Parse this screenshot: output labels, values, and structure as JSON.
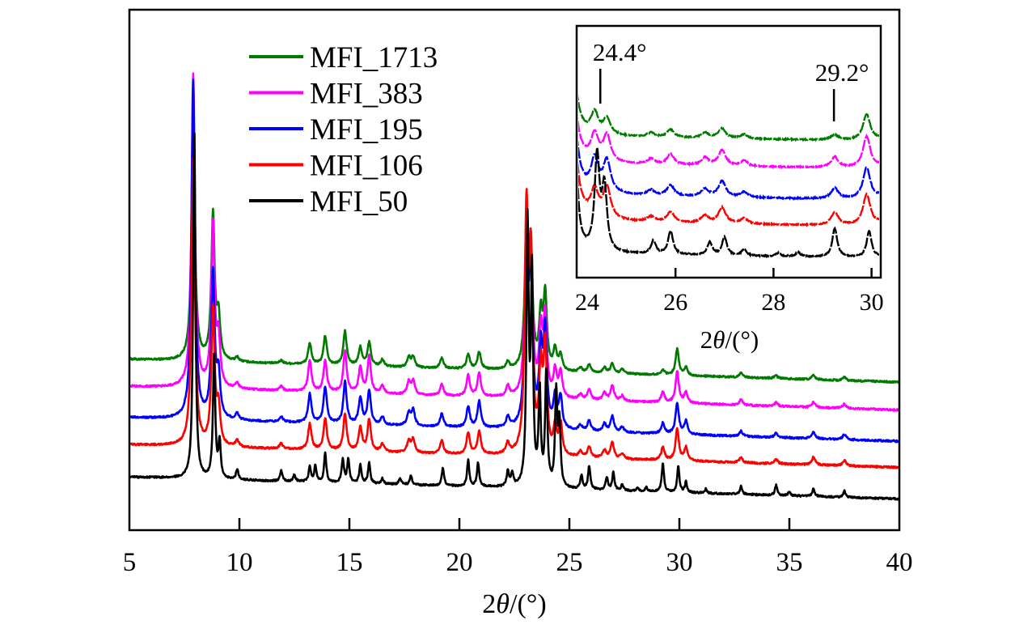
{
  "chart_data": {
    "type": "line",
    "title": "",
    "xlabel": "2θ/(°)",
    "xlabel_parts": {
      "prefix": "2",
      "symbol": "θ",
      "suffix": "/(°)"
    },
    "ylabel": "",
    "xlim": [
      5,
      40
    ],
    "ylim": [
      0,
      100
    ],
    "y_units": "arbitrary intensity (no y-axis shown)",
    "xticks": [
      5,
      10,
      15,
      20,
      25,
      30,
      35,
      40
    ],
    "grid": false,
    "legend_placement": "top-left",
    "peak_half_width_deg": {
      "default": 0.09,
      "MFI_50": 0.06
    },
    "peak_positions": [
      7.9,
      8.8,
      9.05,
      9.9,
      11.9,
      13.2,
      13.9,
      14.8,
      15.5,
      15.9,
      16.5,
      17.7,
      17.9,
      19.2,
      20.4,
      20.9,
      22.2,
      23.05,
      23.25,
      23.7,
      23.9,
      24.35,
      24.6,
      25.5,
      25.9,
      26.6,
      26.95,
      27.4,
      29.25,
      29.9,
      30.3,
      32.8,
      34.4,
      36.1,
      37.5
    ],
    "series": [
      {
        "name": "MFI_1713",
        "color": "#007a00",
        "offset": 32.7,
        "slope": -0.125,
        "heights": [
          48,
          28,
          8,
          0.8,
          0.6,
          4,
          5.5,
          6.5,
          3.5,
          4.5,
          1.3,
          2,
          2,
          2,
          2.8,
          3.3,
          1.5,
          27,
          22,
          10,
          14,
          4,
          3,
          0.8,
          1.5,
          1,
          1.8,
          0.8,
          1,
          5,
          1.5,
          0.8,
          0.5,
          0.8,
          0.6
        ]
      },
      {
        "name": "MFI_383",
        "color": "#ff00ff",
        "offset": 27.5,
        "slope": -0.13,
        "heights": [
          60,
          31,
          9,
          1,
          0.8,
          6,
          6,
          8,
          5,
          7,
          1.5,
          2.5,
          2.5,
          2.2,
          4,
          4.5,
          2,
          30,
          26,
          12,
          15,
          5,
          5,
          1,
          2,
          1.5,
          3,
          1,
          2,
          6,
          2,
          1,
          0.7,
          1,
          0.8
        ]
      },
      {
        "name": "MFI_195",
        "color": "#0000ff",
        "offset": 21.5,
        "slope": -0.13,
        "heights": [
          65,
          28,
          8,
          1.2,
          1,
          5.5,
          7,
          8,
          5,
          6.5,
          1.5,
          2.5,
          3,
          2.5,
          4,
          5,
          2,
          35,
          28,
          14,
          18,
          6,
          6,
          1,
          2,
          1.5,
          3,
          1,
          2,
          6,
          2.5,
          1,
          0.8,
          1.2,
          1
        ]
      },
      {
        "name": "MFI_106",
        "color": "#ff0000",
        "offset": 16.3,
        "slope": -0.125,
        "heights": [
          55,
          26,
          7,
          1.2,
          1,
          5,
          6,
          7,
          4.5,
          6,
          1.5,
          2.2,
          2.5,
          2.5,
          4,
          4.5,
          2,
          45,
          35,
          15,
          20,
          5,
          6,
          1,
          2,
          1.5,
          3,
          1,
          2.5,
          6,
          2.5,
          1,
          0.8,
          1.5,
          1
        ]
      },
      {
        "name": "MFI_50",
        "color": "#000000",
        "offset": 10.1,
        "slope": -0.12,
        "peaks": [
          [
            7.95,
            68
          ],
          [
            8.85,
            24
          ],
          [
            9.1,
            7
          ],
          [
            9.9,
            2
          ],
          [
            11.9,
            2
          ],
          [
            12.5,
            1.3
          ],
          [
            13.2,
            3
          ],
          [
            13.45,
            3
          ],
          [
            13.9,
            5.5
          ],
          [
            14.7,
            4.5
          ],
          [
            14.95,
            4.5
          ],
          [
            15.5,
            3.5
          ],
          [
            15.9,
            4
          ],
          [
            16.5,
            1
          ],
          [
            17.3,
            1.2
          ],
          [
            17.8,
            1.8
          ],
          [
            19.25,
            3.5
          ],
          [
            20.4,
            5
          ],
          [
            20.85,
            4.5
          ],
          [
            22.2,
            3
          ],
          [
            22.4,
            2.5
          ],
          [
            23.1,
            50
          ],
          [
            23.3,
            40
          ],
          [
            23.65,
            18
          ],
          [
            23.95,
            22
          ],
          [
            24.4,
            18
          ],
          [
            24.55,
            12
          ],
          [
            25.55,
            2.5
          ],
          [
            25.9,
            4.5
          ],
          [
            26.7,
            2.5
          ],
          [
            27.0,
            3.5
          ],
          [
            27.4,
            1.2
          ],
          [
            28.1,
            0.6
          ],
          [
            28.5,
            0.8
          ],
          [
            29.25,
            5.5
          ],
          [
            29.95,
            5
          ],
          [
            30.3,
            2
          ],
          [
            31.2,
            0.8
          ],
          [
            32.8,
            1.5
          ],
          [
            34.4,
            2
          ],
          [
            35.0,
            0.8
          ],
          [
            36.1,
            1.5
          ],
          [
            37.5,
            1.2
          ]
        ]
      }
    ],
    "inset": {
      "xlim": [
        24,
        30.2
      ],
      "xticks": [
        24,
        26,
        28,
        30
      ],
      "xlabel": "2θ/(°)",
      "xlabel_parts": {
        "prefix": "2",
        "symbol": "θ",
        "suffix": "/(°)"
      },
      "annotations": [
        {
          "label": "24.4°",
          "x": 24.4
        },
        {
          "label": "29.2°",
          "x": 29.2
        }
      ]
    }
  }
}
